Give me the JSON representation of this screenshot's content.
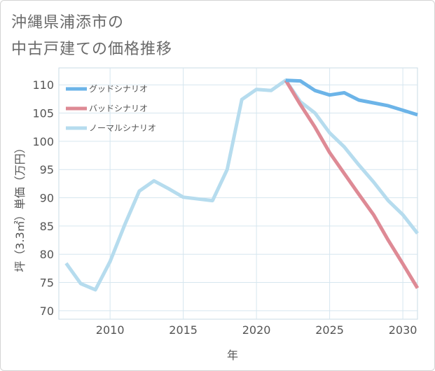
{
  "title": {
    "line1": "沖縄県浦添市の",
    "line2": "中古戸建ての価格推移"
  },
  "chart_data": {
    "type": "line",
    "title": "沖縄県浦添市の中古戸建ての価格推移",
    "xlabel": "年",
    "ylabel": "坪（3.3㎡）単価（万円）",
    "xlim": [
      2006.5,
      2031
    ],
    "ylim": [
      68.5,
      113
    ],
    "xticks": [
      2010,
      2015,
      2020,
      2025,
      2030
    ],
    "yticks": [
      70,
      75,
      80,
      85,
      90,
      95,
      100,
      105,
      110
    ],
    "grid": true,
    "legend_position": "top-left",
    "series": [
      {
        "name": "グッドシナリオ",
        "color": "#6cb4e8",
        "x": [
          2022,
          2023,
          2024,
          2025,
          2026,
          2027,
          2028,
          2029,
          2030,
          2031
        ],
        "y": [
          110.8,
          110.7,
          109.0,
          108.2,
          108.6,
          107.3,
          106.8,
          106.3,
          105.5,
          104.7
        ]
      },
      {
        "name": "バッドシナリオ",
        "color": "#de8a95",
        "x": [
          2022,
          2023,
          2024,
          2025,
          2026,
          2027,
          2028,
          2029,
          2030,
          2031
        ],
        "y": [
          110.8,
          106.5,
          102.5,
          98.0,
          94.3,
          90.6,
          87.0,
          82.5,
          78.3,
          74.0
        ]
      },
      {
        "name": "ノーマルシナリオ",
        "color": "#b6dcee",
        "x": [
          2007,
          2008,
          2009,
          2010,
          2011,
          2012,
          2013,
          2014,
          2015,
          2016,
          2017,
          2018,
          2019,
          2020,
          2021,
          2022,
          2023,
          2024,
          2025,
          2026,
          2027,
          2028,
          2029,
          2030,
          2031
        ],
        "y": [
          78.4,
          74.8,
          73.7,
          78.7,
          85.2,
          91.2,
          93.0,
          91.6,
          90.1,
          89.8,
          89.5,
          95.0,
          107.4,
          109.2,
          109.0,
          110.8,
          107.0,
          105.0,
          101.5,
          99.0,
          95.8,
          92.8,
          89.5,
          87.0,
          83.7
        ]
      }
    ]
  }
}
